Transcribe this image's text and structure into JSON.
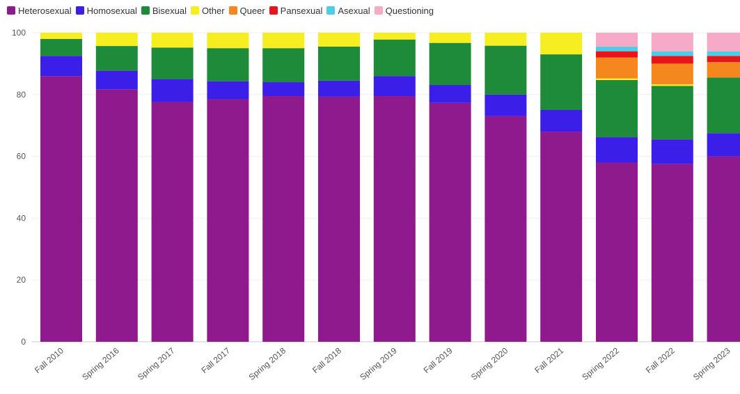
{
  "chart_data": {
    "type": "bar",
    "stacked": true,
    "legend_position": "top-left",
    "grid": true,
    "ylim": [
      0,
      100
    ],
    "yticks": [
      0,
      20,
      40,
      60,
      80,
      100
    ],
    "categories": [
      "Fall 2010",
      "Spring 2016",
      "Spring 2017",
      "Fall 2017",
      "Spring 2018",
      "Fall 2018",
      "Spring 2019",
      "Fall 2019",
      "Spring 2020",
      "Fall 2021",
      "Spring 2022",
      "Fall 2022",
      "Spring 2023"
    ],
    "series": [
      {
        "name": "Heterosexual",
        "color": "#8e1a8e",
        "values": [
          86,
          81.7,
          77.6,
          78.5,
          79.5,
          79.3,
          79.5,
          77.3,
          73,
          68,
          58,
          57.5,
          60
        ]
      },
      {
        "name": "Homosexual",
        "color": "#3b1fe8",
        "values": [
          6.5,
          6,
          7.4,
          5.8,
          4.5,
          5.2,
          6.5,
          5.8,
          7,
          7,
          8.2,
          8,
          7.5
        ]
      },
      {
        "name": "Bisexual",
        "color": "#1e8b3a",
        "values": [
          5.5,
          8,
          10.2,
          10.7,
          11,
          11,
          11.8,
          13.6,
          15.8,
          18,
          18.5,
          17.3,
          18
        ]
      },
      {
        "name": "Other",
        "color": "#f7ee22",
        "values": [
          2,
          4.3,
          4.8,
          5,
          5,
          4.5,
          2.2,
          3.3,
          4.2,
          7,
          0.5,
          0.5,
          0
        ]
      },
      {
        "name": "Queer",
        "color": "#f5871f",
        "values": [
          0,
          0,
          0,
          0,
          0,
          0,
          0,
          0,
          0,
          0,
          6.8,
          6.7,
          5
        ]
      },
      {
        "name": "Pansexual",
        "color": "#e8161c",
        "values": [
          0,
          0,
          0,
          0,
          0,
          0,
          0,
          0,
          0,
          0,
          2,
          2.5,
          2
        ]
      },
      {
        "name": "Asexual",
        "color": "#4ecde6",
        "values": [
          0,
          0,
          0,
          0,
          0,
          0,
          0,
          0,
          0,
          0,
          1.5,
          1.5,
          1.5
        ]
      },
      {
        "name": "Questioning",
        "color": "#f7aac8",
        "values": [
          0,
          0,
          0,
          0,
          0,
          0,
          0,
          0,
          0,
          0,
          4.5,
          6,
          6
        ]
      }
    ]
  }
}
